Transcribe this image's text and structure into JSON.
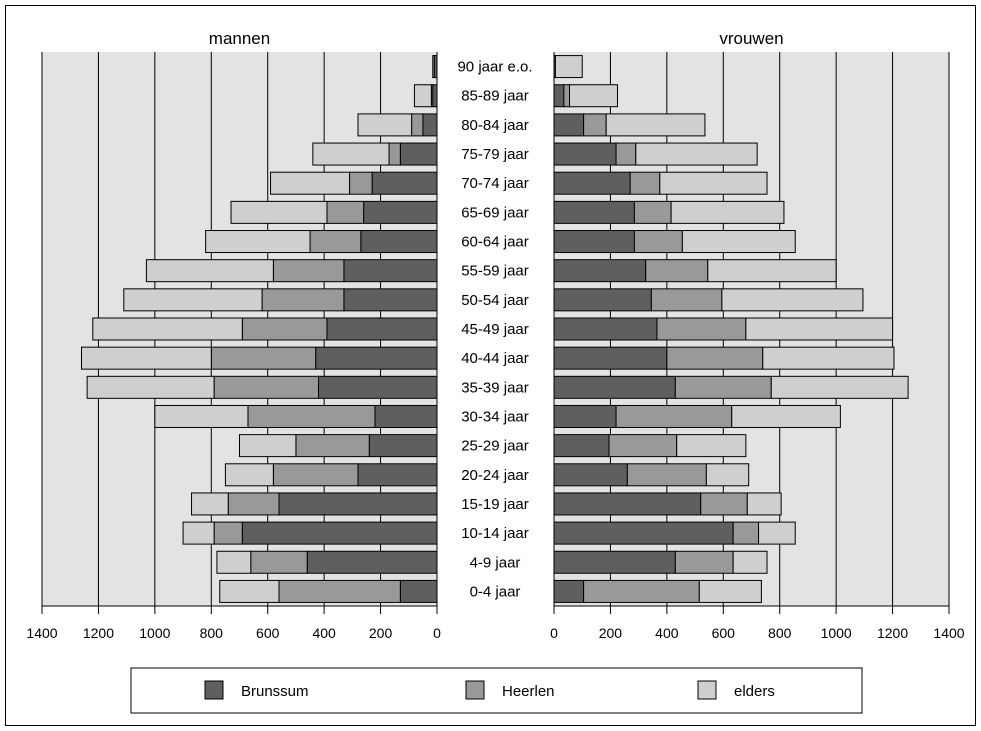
{
  "colors": {
    "background": "#ffffff",
    "plot_background": "#e3e3e3",
    "Brunssum": "#5f5f5f",
    "Heerlen": "#999999",
    "elders": "#cfcfcf",
    "bar_outline": "#000000"
  },
  "chart_data": {
    "type": "bar",
    "orientation": "horizontal",
    "layout": "population pyramid",
    "stacked": true,
    "grid": true,
    "legend_position": "bottom",
    "categories": [
      "90 jaar e.o.",
      "85-89 jaar",
      "80-84 jaar",
      "75-79 jaar",
      "70-74 jaar",
      "65-69 jaar",
      "60-64 jaar",
      "55-59 jaar",
      "50-54 jaar",
      "45-49 jaar",
      "40-44 jaar",
      "35-39 jaar",
      "30-34 jaar",
      "25-29 jaar",
      "20-24 jaar",
      "15-19 jaar",
      "10-14 jaar",
      "4-9 jaar",
      "0-4 jaar"
    ],
    "panels": [
      {
        "title": "mannen",
        "xlim": [
          1400,
          0
        ],
        "xticks": [
          "1400",
          "1200",
          "1000",
          "800",
          "600",
          "400",
          "200",
          "0"
        ],
        "series": [
          {
            "name": "Brunssum",
            "values": [
              10,
              15,
              50,
              130,
              230,
              260,
              270,
              330,
              330,
              390,
              430,
              420,
              220,
              240,
              280,
              560,
              690,
              460,
              130
            ]
          },
          {
            "name": "Heerlen",
            "values": [
              0,
              5,
              40,
              40,
              80,
              130,
              180,
              250,
              290,
              300,
              370,
              370,
              450,
              260,
              300,
              180,
              100,
              200,
              430
            ]
          },
          {
            "name": "elders",
            "values": [
              5,
              60,
              190,
              270,
              280,
              340,
              370,
              450,
              490,
              530,
              460,
              450,
              330,
              200,
              170,
              130,
              110,
              120,
              210
            ]
          }
        ]
      },
      {
        "title": "vrouwen",
        "xlim": [
          0,
          1400
        ],
        "xticks": [
          "0",
          "200",
          "400",
          "600",
          "800",
          "1000",
          "1200",
          "1400"
        ],
        "series": [
          {
            "name": "Brunssum",
            "values": [
              5,
              35,
              105,
              220,
              270,
              285,
              285,
              325,
              345,
              365,
              400,
              430,
              220,
              195,
              260,
              520,
              635,
              430,
              105
            ]
          },
          {
            "name": "Heerlen",
            "values": [
              0,
              20,
              80,
              70,
              105,
              130,
              170,
              220,
              250,
              315,
              340,
              340,
              410,
              240,
              280,
              165,
              90,
              205,
              410
            ]
          },
          {
            "name": "elders",
            "values": [
              95,
              170,
              350,
              430,
              380,
              400,
              400,
              455,
              500,
              520,
              465,
              485,
              385,
              245,
              150,
              120,
              130,
              120,
              220
            ]
          }
        ]
      }
    ]
  },
  "legend": {
    "items": [
      {
        "name": "Brunssum",
        "label": "Brunssum"
      },
      {
        "name": "Heerlen",
        "label": "Heerlen"
      },
      {
        "name": "elders",
        "label": "elders"
      }
    ]
  }
}
